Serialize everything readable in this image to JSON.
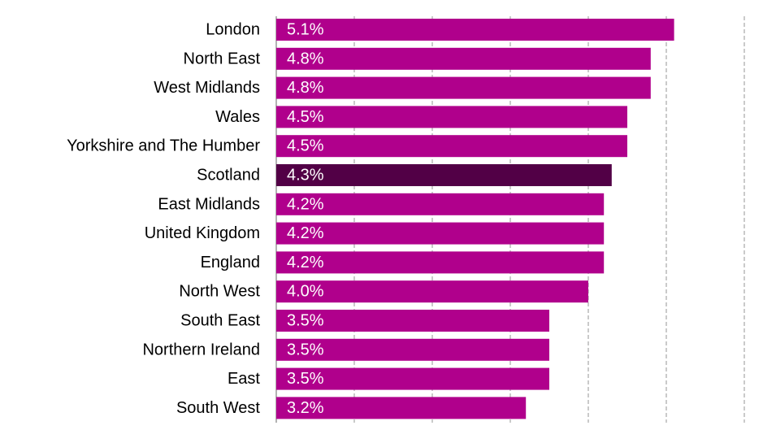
{
  "chart_data": {
    "type": "bar",
    "orientation": "horizontal",
    "categories": [
      "London",
      "North East",
      "West Midlands",
      "Wales",
      "Yorkshire and The Humber",
      "Scotland",
      "East Midlands",
      "United Kingdom",
      "England",
      "North West",
      "South East",
      "Northern Ireland",
      "East",
      "South West"
    ],
    "values": [
      5.1,
      4.8,
      4.8,
      4.5,
      4.5,
      4.3,
      4.2,
      4.2,
      4.2,
      4.0,
      3.5,
      3.5,
      3.5,
      3.2
    ],
    "value_labels": [
      "5.1%",
      "4.8%",
      "4.8%",
      "4.5%",
      "4.5%",
      "4.3%",
      "4.2%",
      "4.2%",
      "4.2%",
      "4.0%",
      "3.5%",
      "3.5%",
      "3.5%",
      "3.2%"
    ],
    "highlight_category": "Scotland",
    "xlim": [
      0,
      6
    ],
    "x_gridlines": [
      1,
      2,
      3,
      4,
      5,
      6
    ],
    "grid": "vertical dashed",
    "title": "",
    "xlabel": "",
    "ylabel": "",
    "colors": {
      "bar": "#b0008c",
      "highlight": "#520046",
      "value_label": "#ffffff",
      "gridline": "#a6a6a6",
      "axis": "#808080",
      "category_label": "#000000"
    }
  }
}
